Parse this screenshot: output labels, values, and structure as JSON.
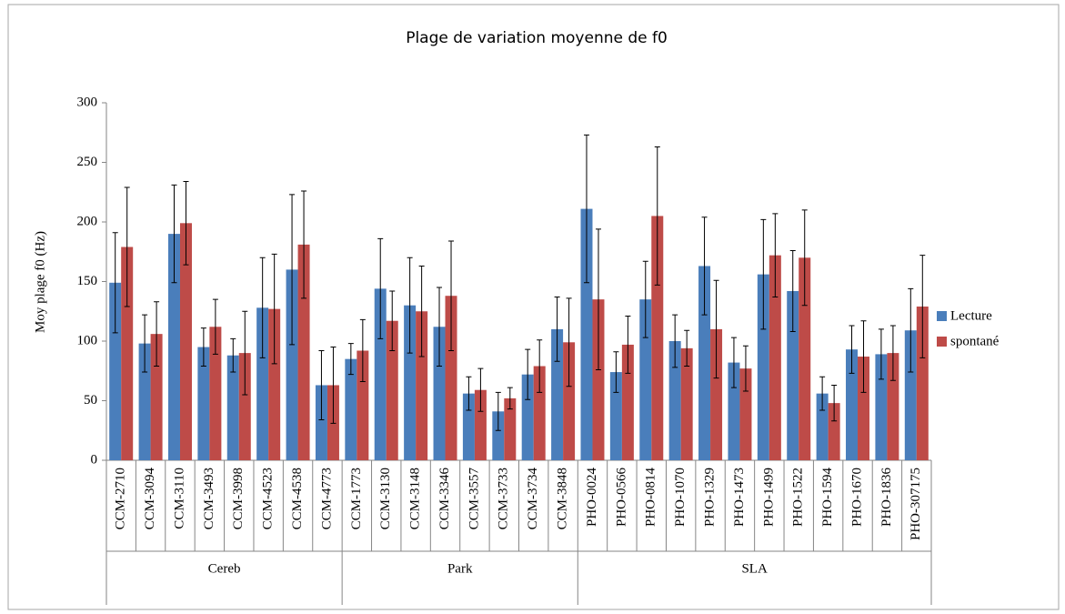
{
  "chart_data": {
    "type": "bar",
    "title": "Plage de variation moyenne de f0",
    "y_label": "Moy plage f0 (Hz)",
    "groups": [
      {
        "name": "Cereb",
        "categories": [
          "CCM-2710",
          "CCM-3094",
          "CCM-3110",
          "CCM-3493",
          "CCM-3998",
          "CCM-4523",
          "CCM-4538",
          "CCM-4773"
        ]
      },
      {
        "name": "Park",
        "categories": [
          "CCM-1773",
          "CCM-3130",
          "CCM-3148",
          "CCM-3346",
          "CCM-3557",
          "CCM-3733",
          "CCM-3734",
          "CCM-3848"
        ]
      },
      {
        "name": "SLA",
        "categories": [
          "PHO-0024",
          "PHO-0566",
          "PHO-0814",
          "PHO-1070",
          "PHO-1329",
          "PHO-1473",
          "PHO-1499",
          "PHO-1522",
          "PHO-1594",
          "PHO-1670",
          "PHO-1836",
          "PHO-307175"
        ]
      }
    ],
    "series": [
      {
        "name": "Lecture",
        "color": "#4a7ebb",
        "values": [
          149,
          98,
          190,
          95,
          88,
          128,
          160,
          63,
          85,
          144,
          130,
          112,
          56,
          41,
          72,
          110,
          211,
          74,
          135,
          100,
          163,
          82,
          156,
          142,
          56,
          93,
          89,
          109
        ],
        "errors": [
          42,
          24,
          41,
          16,
          14,
          42,
          63,
          29,
          13,
          42,
          40,
          33,
          14,
          16,
          21,
          27,
          62,
          17,
          32,
          22,
          41,
          21,
          46,
          34,
          14,
          20,
          21,
          35
        ]
      },
      {
        "name": "spontané",
        "color": "#be4b48",
        "values": [
          179,
          106,
          199,
          112,
          90,
          127,
          181,
          63,
          92,
          117,
          125,
          138,
          59,
          52,
          79,
          99,
          135,
          97,
          205,
          94,
          110,
          77,
          172,
          170,
          48,
          87,
          90,
          129
        ],
        "errors": [
          50,
          27,
          35,
          23,
          35,
          46,
          45,
          32,
          26,
          25,
          38,
          46,
          18,
          9,
          22,
          37,
          59,
          24,
          58,
          15,
          41,
          19,
          35,
          40,
          15,
          30,
          23,
          43
        ]
      }
    ],
    "ylim": [
      0,
      300
    ],
    "yticks": [
      0,
      50,
      100,
      150,
      200,
      250,
      300
    ],
    "legend": "right"
  }
}
